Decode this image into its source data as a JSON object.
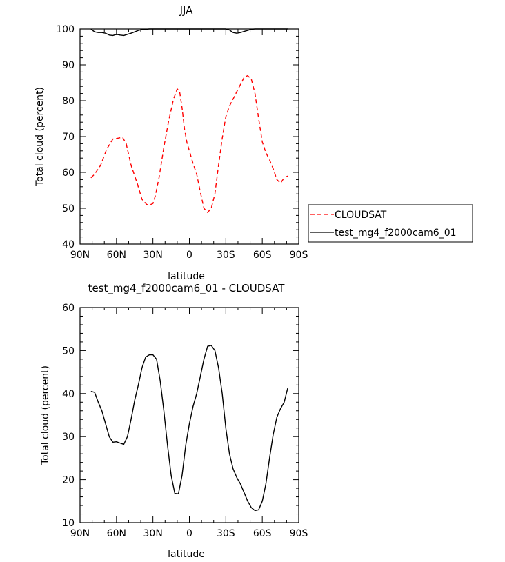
{
  "chart_data": [
    {
      "type": "line",
      "title": "JJA",
      "xlabel": "latitude",
      "ylabel": "Total cloud (percent)",
      "xlim": [
        90,
        -90
      ],
      "ylim": [
        40,
        100
      ],
      "x_ticks": [
        {
          "value": 90,
          "label": "90N"
        },
        {
          "value": 60,
          "label": "60N"
        },
        {
          "value": 30,
          "label": "30N"
        },
        {
          "value": 0,
          "label": "0"
        },
        {
          "value": -30,
          "label": "30S"
        },
        {
          "value": -60,
          "label": "60S"
        },
        {
          "value": -90,
          "label": "90S"
        }
      ],
      "y_ticks": [
        40,
        50,
        60,
        70,
        80,
        90,
        100
      ],
      "legend_position": "right",
      "series": [
        {
          "name": "CLOUDSAT",
          "color": "#ff0000",
          "style": "dashed",
          "x": [
            81,
            78,
            73,
            68,
            63,
            58,
            55,
            52,
            48,
            43,
            39,
            35,
            32,
            30,
            28,
            25,
            21,
            17,
            13,
            10,
            8,
            6,
            4,
            2,
            0,
            -3,
            -6,
            -9,
            -12,
            -15,
            -18,
            -21,
            -24,
            -27,
            -30,
            -33,
            -36,
            -39,
            -42,
            -45,
            -48,
            -51,
            -54,
            -57,
            -60,
            -63,
            -66,
            -69,
            -72,
            -75,
            -78,
            -81
          ],
          "y": [
            58.5,
            59.5,
            62.0,
            66.5,
            69.3,
            69.6,
            69.8,
            68.0,
            62.0,
            57.0,
            52.5,
            51.0,
            51.0,
            51.3,
            53.5,
            58.5,
            67.0,
            74.5,
            80.5,
            83.3,
            82.5,
            78.0,
            72.0,
            68.3,
            66.0,
            62.5,
            59.5,
            54.5,
            50.0,
            48.8,
            50.0,
            54.0,
            62.0,
            69.5,
            75.5,
            78.5,
            80.5,
            82.5,
            84.5,
            86.5,
            87.0,
            86.0,
            82.0,
            75.0,
            68.5,
            65.5,
            63.5,
            61.0,
            58.0,
            57.0,
            58.5,
            59.0
          ]
        },
        {
          "name": "test_mg4_f2000cam6_01",
          "color": "#000000",
          "style": "solid",
          "x": [
            81,
            78,
            75,
            72,
            69,
            66,
            63,
            60,
            57,
            54,
            51,
            48,
            45,
            42,
            39,
            36,
            33,
            30,
            24,
            18,
            12,
            6,
            0,
            -6,
            -12,
            -18,
            -24,
            -30,
            -33,
            -36,
            -39,
            -42,
            -45,
            -48,
            -51,
            -54,
            -57,
            -60,
            -66,
            -72,
            -78,
            -81
          ],
          "y": [
            100,
            99.2,
            99.0,
            99.0,
            98.8,
            98.3,
            98.2,
            98.5,
            98.3,
            98.2,
            98.5,
            98.8,
            99.2,
            99.6,
            99.8,
            99.9,
            100,
            100,
            100,
            100,
            100,
            100,
            100,
            100,
            100,
            100,
            100,
            100,
            99.7,
            99.0,
            98.8,
            99.0,
            99.3,
            99.6,
            99.9,
            100,
            100,
            100,
            100,
            100,
            100,
            100
          ]
        }
      ]
    },
    {
      "type": "line",
      "title": "test_mg4_f2000cam6_01 - CLOUDSAT",
      "xlabel": "latitude",
      "ylabel": "Total cloud (percent)",
      "xlim": [
        90,
        -90
      ],
      "ylim": [
        10,
        60
      ],
      "x_ticks": [
        {
          "value": 90,
          "label": "90N"
        },
        {
          "value": 60,
          "label": "60N"
        },
        {
          "value": 30,
          "label": "30N"
        },
        {
          "value": 0,
          "label": "0"
        },
        {
          "value": -30,
          "label": "30S"
        },
        {
          "value": -60,
          "label": "60S"
        },
        {
          "value": -90,
          "label": "90S"
        }
      ],
      "y_ticks": [
        10,
        20,
        30,
        40,
        50,
        60
      ],
      "series": [
        {
          "color": "#000000",
          "style": "solid",
          "x": [
            81,
            78,
            75,
            72,
            69,
            66,
            63,
            60,
            57,
            54,
            51,
            48,
            45,
            42,
            39,
            36,
            33,
            30,
            27,
            24,
            21,
            18,
            15,
            12,
            9,
            6,
            3,
            0,
            -3,
            -6,
            -9,
            -12,
            -15,
            -18,
            -21,
            -24,
            -27,
            -30,
            -33,
            -36,
            -39,
            -42,
            -45,
            -48,
            -51,
            -54,
            -57,
            -60,
            -63,
            -66,
            -69,
            -72,
            -75,
            -78,
            -81
          ],
          "y": [
            40.5,
            40.3,
            38.0,
            36.0,
            33.0,
            30.0,
            28.7,
            28.8,
            28.5,
            28.2,
            30.0,
            34.0,
            38.5,
            42.0,
            46.0,
            48.5,
            49.0,
            49.0,
            48.0,
            43.0,
            36.0,
            28.0,
            21.0,
            16.8,
            16.7,
            21.0,
            28.0,
            33.0,
            37.0,
            40.0,
            44.0,
            48.0,
            51.0,
            51.2,
            50.0,
            46.0,
            40.0,
            32.0,
            26.0,
            22.5,
            20.5,
            19.0,
            17.0,
            15.0,
            13.5,
            12.8,
            13.0,
            15.0,
            19.0,
            25.0,
            30.5,
            34.5,
            36.5,
            38.0,
            41.3
          ]
        }
      ]
    }
  ]
}
